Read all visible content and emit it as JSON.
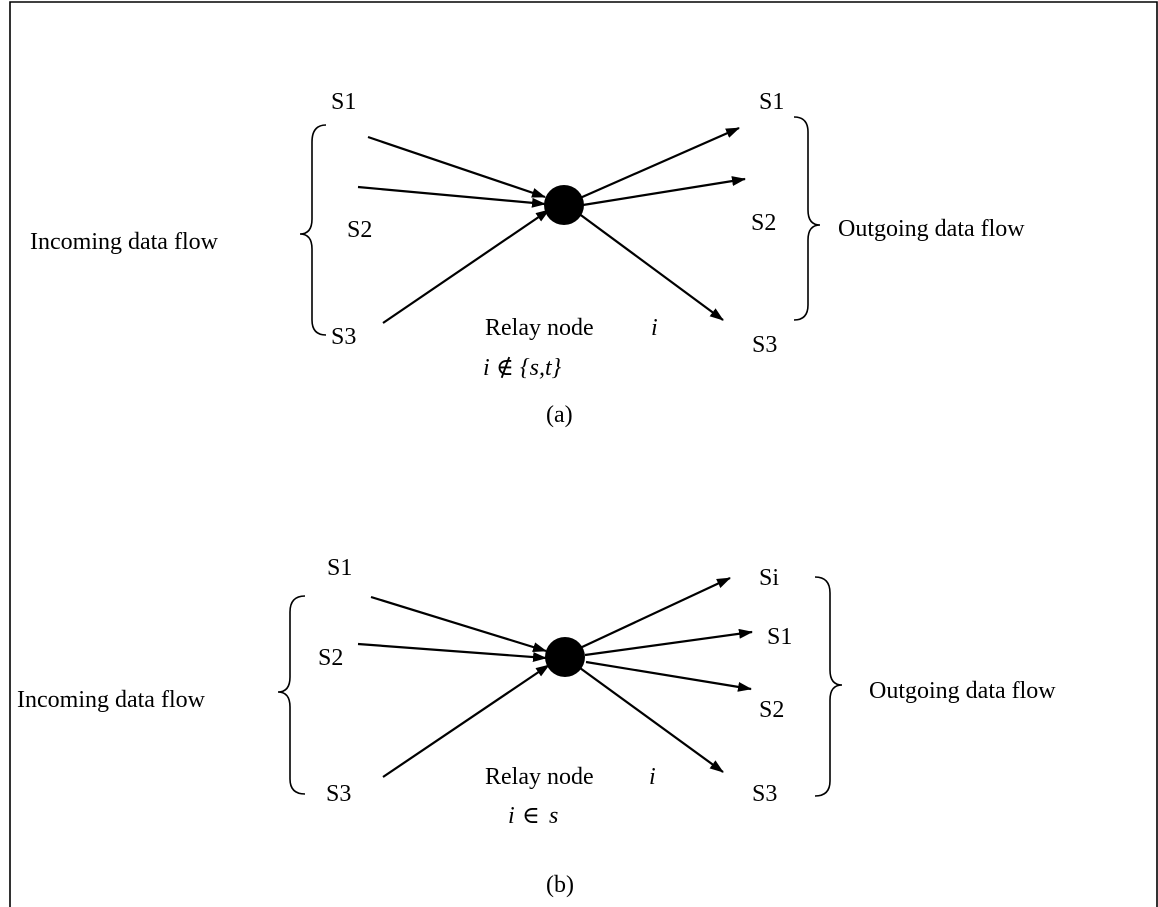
{
  "panel_a": {
    "incoming_sources": [
      "S1",
      "S2",
      "S3"
    ],
    "outgoing_sources": [
      "S1",
      "S2",
      "S3"
    ],
    "incoming_label": "Incoming data flow",
    "outgoing_label": "Outgoing data flow",
    "relay_label": "Relay node",
    "relay_symbol": "i",
    "condition_lhs": "i",
    "condition_op": "∉",
    "condition_rhs": "{s,t}",
    "caption": "(a)"
  },
  "panel_b": {
    "incoming_sources": [
      "S1",
      "S2",
      "S3"
    ],
    "outgoing_sources": [
      "Si",
      "S1",
      "S2",
      "S3"
    ],
    "incoming_label": "Incoming data flow",
    "outgoing_label": "Outgoing data flow",
    "relay_label": "Relay node",
    "relay_symbol": "i",
    "condition_lhs": "i",
    "condition_op": "∈",
    "condition_rhs": "s",
    "caption": "(b)"
  },
  "colors": {
    "ink": "#000000",
    "background": "#ffffff"
  }
}
